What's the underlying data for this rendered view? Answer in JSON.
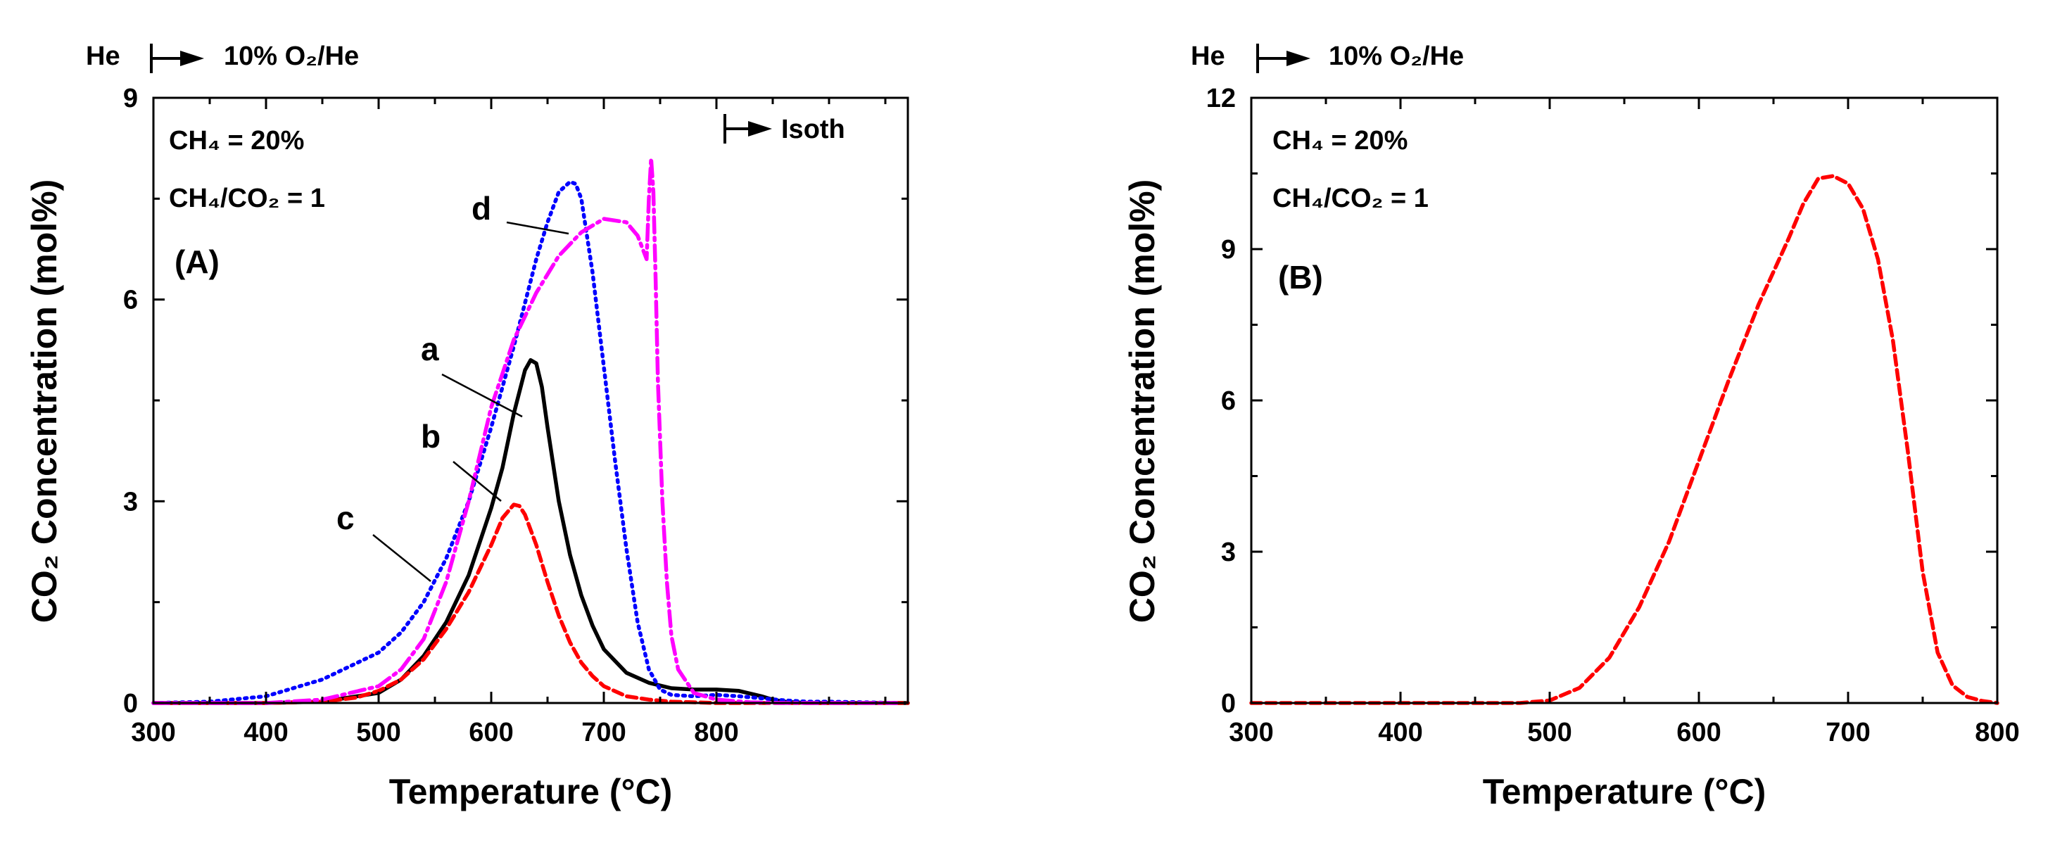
{
  "chart_data": [
    {
      "panel": "A",
      "type": "line",
      "title": "",
      "xlabel": "Temperature (°C)",
      "ylabel": "CO₂ Concentration (mol%)",
      "xlim": [
        300,
        970
      ],
      "ylim": [
        0,
        9
      ],
      "xticks": [
        300,
        400,
        500,
        600,
        700,
        800
      ],
      "yticks": [
        0,
        3,
        6,
        9
      ],
      "gas_label": {
        "left": "He",
        "right": "10% O₂/He"
      },
      "isoth_label": "Isoth",
      "annotations": {
        "line1": "CH₄ = 20%",
        "line2": "CH₄/CO₂ = 1",
        "panel": "(A)"
      },
      "series": [
        {
          "name": "a",
          "color": "#000000",
          "style": "solid",
          "x": [
            300,
            400,
            450,
            500,
            520,
            540,
            560,
            580,
            600,
            610,
            620,
            630,
            635,
            640,
            645,
            650,
            660,
            670,
            680,
            690,
            700,
            720,
            740,
            760,
            780,
            800,
            820,
            840,
            850,
            860,
            880,
            900,
            970
          ],
          "y": [
            0,
            0,
            0.02,
            0.15,
            0.35,
            0.7,
            1.2,
            1.9,
            2.9,
            3.5,
            4.3,
            4.95,
            5.1,
            5.05,
            4.7,
            4.1,
            3.0,
            2.2,
            1.6,
            1.15,
            0.8,
            0.45,
            0.3,
            0.22,
            0.2,
            0.2,
            0.18,
            0.1,
            0.05,
            0.02,
            0,
            0,
            0
          ]
        },
        {
          "name": "b",
          "color": "#ff0000",
          "style": "dashed",
          "x": [
            300,
            400,
            450,
            480,
            500,
            520,
            540,
            560,
            580,
            600,
            610,
            620,
            625,
            630,
            640,
            650,
            660,
            670,
            680,
            690,
            700,
            720,
            740,
            760,
            780,
            800,
            820,
            850,
            970
          ],
          "y": [
            0,
            0,
            0.02,
            0.08,
            0.18,
            0.35,
            0.65,
            1.1,
            1.65,
            2.35,
            2.75,
            2.95,
            2.93,
            2.8,
            2.35,
            1.8,
            1.3,
            0.9,
            0.6,
            0.4,
            0.25,
            0.1,
            0.05,
            0.02,
            0.01,
            0,
            0,
            0,
            0
          ]
        },
        {
          "name": "c",
          "color": "#0000ff",
          "style": "dotted",
          "x": [
            300,
            350,
            400,
            450,
            500,
            520,
            540,
            560,
            580,
            600,
            620,
            640,
            650,
            660,
            670,
            675,
            680,
            690,
            700,
            710,
            720,
            730,
            740,
            750,
            760,
            780,
            800,
            820,
            840,
            860,
            880,
            900,
            930,
            960
          ],
          "y": [
            0,
            0.02,
            0.1,
            0.35,
            0.75,
            1.05,
            1.5,
            2.15,
            3.0,
            4.1,
            5.3,
            6.6,
            7.15,
            7.6,
            7.75,
            7.72,
            7.5,
            6.4,
            5.0,
            3.6,
            2.3,
            1.2,
            0.5,
            0.2,
            0.12,
            0.1,
            0.12,
            0.1,
            0.07,
            0.04,
            0.02,
            0.02,
            0.01,
            0
          ]
        },
        {
          "name": "d",
          "color": "#ff00ff",
          "style": "dashdot",
          "x": [
            300,
            400,
            450,
            500,
            520,
            540,
            560,
            580,
            600,
            620,
            640,
            660,
            680,
            700,
            720,
            730,
            738,
            740,
            742,
            744,
            746,
            748,
            752,
            756,
            760,
            766,
            780,
            800,
            830,
            860,
            900,
            960
          ],
          "y": [
            0,
            0,
            0.05,
            0.25,
            0.5,
            0.95,
            1.8,
            3.0,
            4.4,
            5.4,
            6.1,
            6.65,
            7.0,
            7.2,
            7.15,
            6.95,
            6.6,
            7.5,
            8.1,
            7.6,
            6.3,
            4.8,
            3.0,
            1.8,
            1.0,
            0.5,
            0.15,
            0.05,
            0.01,
            0,
            0,
            0
          ]
        }
      ]
    },
    {
      "panel": "B",
      "type": "line",
      "title": "",
      "xlabel": "Temperature (°C)",
      "ylabel": "CO₂ Concentration (mol%)",
      "xlim": [
        300,
        800
      ],
      "ylim": [
        0,
        12
      ],
      "xticks": [
        300,
        400,
        500,
        600,
        700,
        800
      ],
      "yticks": [
        0,
        3,
        6,
        9,
        12
      ],
      "gas_label": {
        "left": "He",
        "right": "10% O₂/He"
      },
      "annotations": {
        "line1": "CH₄ = 20%",
        "line2": "CH₄/CO₂ = 1",
        "panel": "(B)"
      },
      "series": [
        {
          "name": "B",
          "color": "#ff0000",
          "style": "dashed",
          "x": [
            300,
            400,
            480,
            500,
            520,
            540,
            560,
            580,
            600,
            620,
            640,
            660,
            670,
            680,
            690,
            700,
            710,
            720,
            730,
            740,
            750,
            760,
            770,
            780,
            790,
            800
          ],
          "y": [
            0,
            0,
            0,
            0.05,
            0.3,
            0.9,
            1.9,
            3.2,
            4.8,
            6.4,
            7.9,
            9.2,
            9.9,
            10.4,
            10.45,
            10.3,
            9.8,
            8.8,
            7.2,
            5.0,
            2.6,
            1.0,
            0.35,
            0.12,
            0.04,
            0
          ]
        }
      ]
    }
  ]
}
